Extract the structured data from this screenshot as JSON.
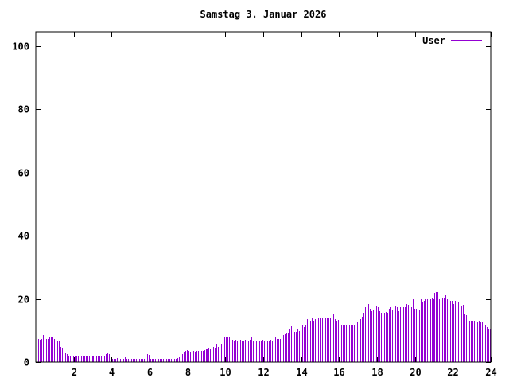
{
  "window": {
    "background": "#ffffff",
    "text_color": "#000000"
  },
  "chart_data": {
    "type": "bar",
    "title": "Samstag 3. Januar 2026",
    "series_name": "User",
    "bar_color": "#9400d3",
    "legend_position": "top-right",
    "grid": false,
    "xlabel": "",
    "ylabel": "",
    "xlim": [
      0,
      24
    ],
    "ylim": [
      0,
      100
    ],
    "x_ticks": [
      2,
      4,
      6,
      8,
      10,
      12,
      14,
      16,
      18,
      20,
      22,
      24
    ],
    "y_ticks": [
      0,
      20,
      40,
      60,
      80,
      100
    ],
    "x_unit": "hour-of-day",
    "sample_interval_minutes": 5,
    "values": [
      8.5,
      7.4,
      7.0,
      7.4,
      8.6,
      6.2,
      7.4,
      7.4,
      7.8,
      7.8,
      7.8,
      7.4,
      7.4,
      6.6,
      6.6,
      4.9,
      4.5,
      3.7,
      2.9,
      2.5,
      2.1,
      2.1,
      2.1,
      2.1,
      2.1,
      2.0,
      2.1,
      2.1,
      2.0,
      2.1,
      2.1,
      2.1,
      2.0,
      2.1,
      2.1,
      2.0,
      2.1,
      2.1,
      2.0,
      2.1,
      2.1,
      2.1,
      2.0,
      2.1,
      2.6,
      2.9,
      2.6,
      1.6,
      1.1,
      1.0,
      1.1,
      1.2,
      1.0,
      1.1,
      1.0,
      1.1,
      1.5,
      1.1,
      1.0,
      1.1,
      1.0,
      1.1,
      1.1,
      1.0,
      1.1,
      1.0,
      1.1,
      1.1,
      1.0,
      1.1,
      2.6,
      2.2,
      1.1,
      1.0,
      1.1,
      1.1,
      1.0,
      1.1,
      1.0,
      1.1,
      1.1,
      1.0,
      1.1,
      1.1,
      1.0,
      1.1,
      1.1,
      1.0,
      1.1,
      1.2,
      1.8,
      2.5,
      2.5,
      3.3,
      3.5,
      3.7,
      3.5,
      3.3,
      3.7,
      3.5,
      3.4,
      3.6,
      3.5,
      3.3,
      3.6,
      3.5,
      3.7,
      4.1,
      4.1,
      4.5,
      4.1,
      4.5,
      4.9,
      4.5,
      5.8,
      4.9,
      6.2,
      5.8,
      6.6,
      7.8,
      8.0,
      8.0,
      7.8,
      7.0,
      7.0,
      6.8,
      7.0,
      6.6,
      6.8,
      7.0,
      6.6,
      6.8,
      7.0,
      6.8,
      6.6,
      7.0,
      7.8,
      6.8,
      6.6,
      6.8,
      7.0,
      6.6,
      6.8,
      7.0,
      6.8,
      6.8,
      6.6,
      6.8,
      7.0,
      6.8,
      7.7,
      7.7,
      7.2,
      7.2,
      7.4,
      7.8,
      8.6,
      8.7,
      9.1,
      9.1,
      10.7,
      11.3,
      9.1,
      9.5,
      9.5,
      10.3,
      9.9,
      10.3,
      11.5,
      11.1,
      11.9,
      13.6,
      12.8,
      13.2,
      14.2,
      13.2,
      13.6,
      14.6,
      14.0,
      14.2,
      14.0,
      14.2,
      14.0,
      14.2,
      14.0,
      14.0,
      14.2,
      14.0,
      15.2,
      13.6,
      13.2,
      13.4,
      13.2,
      11.9,
      11.9,
      11.5,
      11.5,
      11.5,
      11.5,
      11.5,
      11.9,
      11.9,
      11.9,
      12.8,
      13.2,
      13.6,
      14.4,
      15.6,
      17.3,
      16.9,
      18.5,
      16.9,
      16.0,
      16.5,
      16.5,
      17.7,
      17.3,
      16.0,
      15.6,
      15.6,
      15.6,
      15.9,
      15.6,
      16.9,
      17.3,
      16.5,
      16.0,
      17.7,
      17.3,
      16.0,
      17.3,
      19.5,
      17.3,
      17.5,
      18.5,
      18.1,
      17.3,
      17.3,
      20.0,
      17.0,
      16.9,
      16.9,
      16.7,
      19.8,
      18.9,
      19.3,
      19.8,
      20.0,
      20.0,
      19.8,
      20.3,
      20.0,
      21.8,
      22.2,
      22.2,
      20.0,
      21.0,
      20.2,
      20.2,
      21.2,
      19.8,
      19.8,
      19.5,
      19.3,
      18.5,
      19.5,
      18.9,
      19.2,
      18.1,
      17.9,
      18.1,
      15.2,
      14.8,
      13.2,
      13.2,
      13.2,
      13.2,
      13.2,
      13.2,
      12.9,
      13.2,
      12.9,
      12.9,
      12.3,
      11.9,
      11.1,
      10.7,
      10.7
    ]
  }
}
